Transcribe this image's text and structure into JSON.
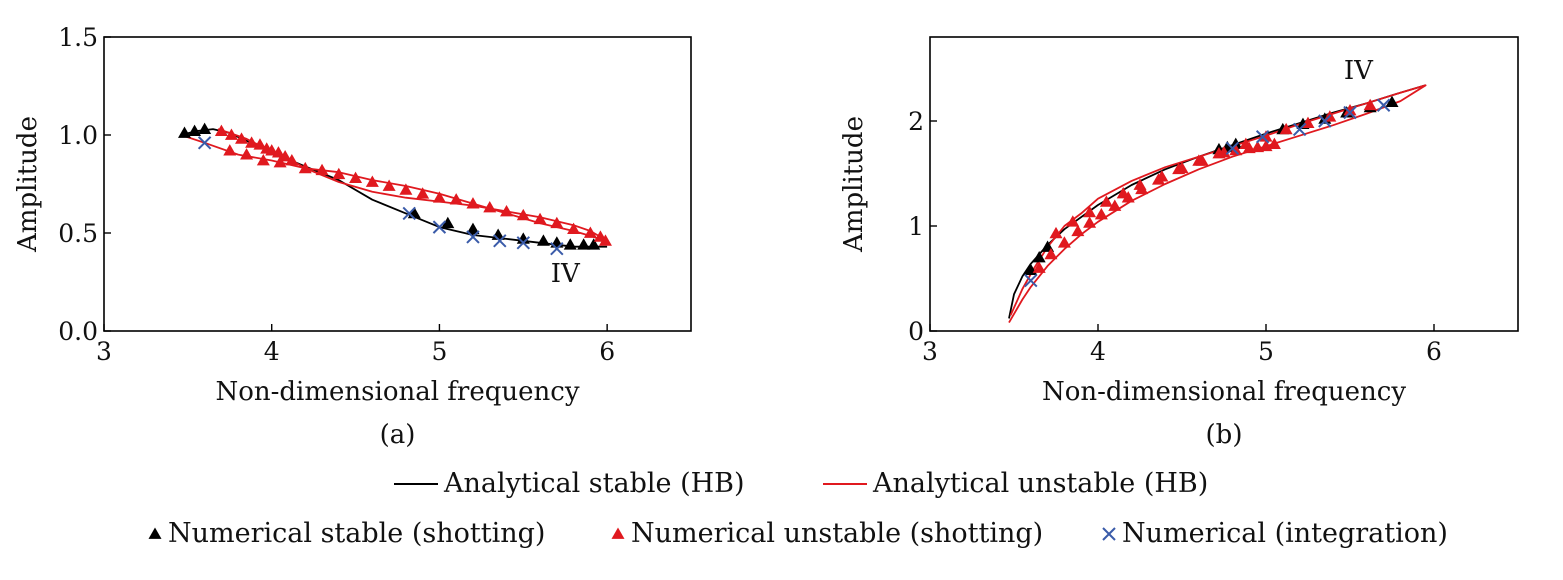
{
  "chart_data": [
    {
      "type": "line",
      "panel_label": "(a)",
      "xlabel": "Non-dimensional frequency",
      "ylabel": "Amplitude",
      "xlim": [
        3,
        6.5
      ],
      "ylim": [
        0,
        1.5
      ],
      "xticks": [
        3,
        4,
        5,
        6
      ],
      "yticks": [
        0.0,
        0.5,
        1.0,
        1.5
      ],
      "ytick_labels": [
        "0.0",
        "0.5",
        "1.0",
        "1.5"
      ],
      "annotation": {
        "text": "IV",
        "x": 5.75,
        "y": 0.25
      },
      "series": [
        {
          "name": "Analytical stable (HB)",
          "style": "line",
          "color": "#000000",
          "x": [
            3.46,
            3.55,
            3.65,
            3.75,
            3.85,
            4.0,
            4.2,
            4.4,
            4.6,
            4.8,
            5.0,
            5.2,
            5.4,
            5.6,
            5.8,
            5.95,
            6.0
          ],
          "y": [
            1.0,
            1.02,
            1.03,
            1.01,
            0.97,
            0.91,
            0.84,
            0.77,
            0.67,
            0.6,
            0.53,
            0.49,
            0.47,
            0.45,
            0.43,
            0.43,
            0.43
          ]
        },
        {
          "name": "Analytical unstable (HB)",
          "style": "line",
          "color": "#e0191f",
          "x": [
            3.46,
            3.6,
            3.8,
            4.0,
            4.2,
            4.4,
            4.6,
            4.8,
            5.0,
            5.2,
            5.4,
            5.6,
            5.8,
            5.92,
            5.98,
            6.0,
            5.98,
            5.9,
            5.8,
            5.6,
            5.4,
            5.2,
            5.0,
            4.8,
            4.6,
            4.4,
            4.2,
            4.1,
            4.0,
            3.92,
            3.85,
            3.75,
            3.68
          ],
          "y": [
            1.0,
            0.96,
            0.9,
            0.87,
            0.83,
            0.81,
            0.77,
            0.74,
            0.7,
            0.65,
            0.6,
            0.55,
            0.51,
            0.48,
            0.46,
            0.45,
            0.47,
            0.51,
            0.54,
            0.58,
            0.61,
            0.64,
            0.66,
            0.68,
            0.71,
            0.76,
            0.83,
            0.88,
            0.91,
            0.95,
            0.98,
            1.01,
            1.03
          ]
        },
        {
          "name": "Numerical stable (shotting)",
          "style": "triangle",
          "color": "#000000",
          "x": [
            3.48,
            3.54,
            3.6,
            4.85,
            5.05,
            5.2,
            5.35,
            5.5,
            5.62,
            5.7,
            5.78,
            5.86,
            5.92
          ],
          "y": [
            1.01,
            1.02,
            1.03,
            0.6,
            0.55,
            0.52,
            0.49,
            0.47,
            0.46,
            0.45,
            0.44,
            0.44,
            0.44
          ]
        },
        {
          "name": "Numerical unstable (shotting)",
          "style": "triangle",
          "color": "#e0191f",
          "x": [
            3.7,
            3.76,
            3.82,
            3.88,
            3.93,
            3.97,
            4.0,
            4.04,
            4.08,
            4.12,
            3.75,
            3.85,
            3.95,
            4.05,
            4.2,
            4.3,
            4.4,
            4.5,
            4.6,
            4.7,
            4.8,
            4.9,
            5.0,
            5.1,
            5.2,
            5.3,
            5.4,
            5.5,
            5.6,
            5.7,
            5.8,
            5.9,
            5.96,
            5.99
          ],
          "y": [
            1.02,
            1.0,
            0.98,
            0.96,
            0.95,
            0.93,
            0.92,
            0.91,
            0.89,
            0.87,
            0.92,
            0.9,
            0.87,
            0.86,
            0.83,
            0.82,
            0.8,
            0.78,
            0.76,
            0.74,
            0.72,
            0.7,
            0.68,
            0.67,
            0.65,
            0.63,
            0.61,
            0.59,
            0.57,
            0.55,
            0.52,
            0.5,
            0.48,
            0.46
          ]
        },
        {
          "name": "Numerical (integration)",
          "style": "x",
          "color": "#3a5ba9",
          "x": [
            3.6,
            4.82,
            5.0,
            5.2,
            5.36,
            5.5,
            5.7
          ],
          "y": [
            0.96,
            0.6,
            0.53,
            0.48,
            0.46,
            0.45,
            0.42
          ]
        }
      ]
    },
    {
      "type": "line",
      "panel_label": "(b)",
      "xlabel": "Non-dimensional frequency",
      "ylabel": "Amplitude",
      "xlim": [
        3,
        6.5
      ],
      "ylim": [
        0,
        2.8
      ],
      "xticks": [
        3,
        4,
        5,
        6
      ],
      "yticks": [
        0,
        1,
        2
      ],
      "ytick_labels": [
        "0",
        "1",
        "2"
      ],
      "annotation": {
        "text": "IV",
        "x": 5.55,
        "y": 2.4
      },
      "series": [
        {
          "name": "Analytical stable (HB)",
          "style": "line",
          "color": "#000000",
          "x": [
            3.47,
            3.5,
            3.55,
            3.6,
            3.7,
            3.8,
            4.0,
            4.2,
            4.4,
            4.6,
            4.8,
            5.0,
            5.2,
            5.4,
            5.6,
            5.8,
            5.95
          ],
          "y": [
            0.12,
            0.35,
            0.52,
            0.64,
            0.82,
            0.97,
            1.2,
            1.39,
            1.54,
            1.66,
            1.77,
            1.88,
            1.98,
            2.08,
            2.17,
            2.27,
            2.34
          ]
        },
        {
          "name": "Analytical unstable (HB)",
          "style": "line",
          "color": "#e0191f",
          "x": [
            3.47,
            3.55,
            3.6,
            3.7,
            3.8,
            3.9,
            4.0,
            4.2,
            4.4,
            4.6,
            4.8,
            5.0,
            5.2,
            5.4,
            5.6,
            5.8,
            5.95,
            5.8,
            5.6,
            5.4,
            5.2,
            5.0,
            4.8,
            4.6,
            4.4,
            4.2,
            4.0,
            3.9,
            3.8,
            3.7,
            3.62,
            3.55,
            3.48
          ],
          "y": [
            0.08,
            0.3,
            0.42,
            0.62,
            0.78,
            0.92,
            1.04,
            1.24,
            1.4,
            1.54,
            1.66,
            1.76,
            1.86,
            1.96,
            2.07,
            2.19,
            2.34,
            2.27,
            2.17,
            2.07,
            1.97,
            1.86,
            1.76,
            1.66,
            1.56,
            1.43,
            1.26,
            1.12,
            1.0,
            0.8,
            0.6,
            0.4,
            0.15
          ]
        },
        {
          "name": "Numerical stable (shotting)",
          "style": "triangle",
          "color": "#000000",
          "x": [
            3.6,
            3.65,
            3.7,
            4.72,
            4.77,
            4.82,
            5.1,
            5.22,
            5.35,
            5.48,
            5.62,
            5.75
          ],
          "y": [
            0.58,
            0.7,
            0.8,
            1.73,
            1.75,
            1.78,
            1.92,
            1.97,
            2.02,
            2.08,
            2.13,
            2.18
          ]
        },
        {
          "name": "Numerical unstable (shotting)",
          "style": "triangle",
          "color": "#e0191f",
          "x": [
            3.65,
            3.72,
            3.8,
            3.88,
            3.95,
            4.02,
            4.1,
            4.18,
            4.26,
            4.36,
            4.48,
            4.6,
            4.72,
            4.82,
            4.9,
            4.95,
            5.0,
            5.05,
            3.75,
            3.85,
            3.95,
            4.05,
            4.15,
            4.25,
            4.38,
            4.5,
            4.62,
            4.75,
            4.88,
            5.0,
            5.12,
            5.25,
            5.38,
            5.5,
            5.62
          ],
          "y": [
            0.6,
            0.73,
            0.84,
            0.95,
            1.03,
            1.11,
            1.19,
            1.27,
            1.35,
            1.44,
            1.54,
            1.62,
            1.69,
            1.72,
            1.74,
            1.75,
            1.76,
            1.78,
            0.93,
            1.04,
            1.13,
            1.23,
            1.31,
            1.39,
            1.47,
            1.55,
            1.62,
            1.7,
            1.78,
            1.85,
            1.92,
            1.98,
            2.04,
            2.1,
            2.15
          ]
        },
        {
          "name": "Numerical (integration)",
          "style": "x",
          "color": "#3a5ba9",
          "x": [
            3.6,
            4.8,
            4.98,
            5.2,
            5.35,
            5.5,
            5.7
          ],
          "y": [
            0.48,
            1.74,
            1.85,
            1.92,
            2.0,
            2.08,
            2.15
          ]
        }
      ]
    }
  ],
  "legend": [
    {
      "label": "Analytical stable (HB)",
      "style": "line",
      "color": "#000000"
    },
    {
      "label": "Analytical unstable (HB)",
      "style": "line",
      "color": "#e0191f"
    },
    {
      "label": "Numerical stable (shotting)",
      "style": "triangle",
      "color": "#000000"
    },
    {
      "label": "Numerical unstable (shotting)",
      "style": "triangle",
      "color": "#e0191f"
    },
    {
      "label": "Numerical (integration)",
      "style": "x",
      "color": "#3a5ba9"
    }
  ]
}
